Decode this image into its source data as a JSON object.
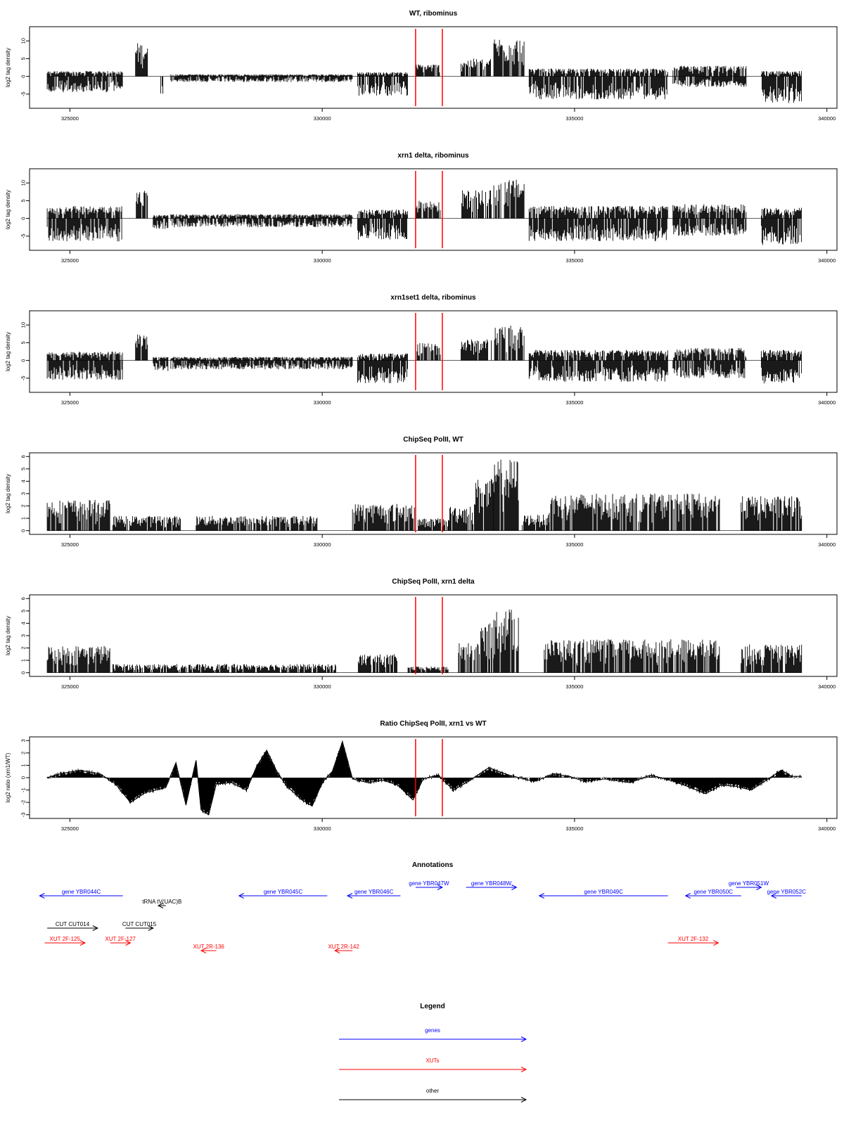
{
  "chart_data": [
    {
      "type": "bar",
      "title": "WT, ribominus",
      "ylabel": "log2 tag density",
      "xlim": [
        324200,
        340200
      ],
      "ylim": [
        -9,
        14
      ],
      "yticks": [
        -5,
        0,
        5,
        10
      ],
      "xticks": [
        325000,
        330000,
        335000,
        340000
      ],
      "red_lines": [
        331850,
        332380
      ],
      "series": [
        {
          "profile": [
            {
              "range": [
                324550,
                326050
              ],
              "pos": 1.5,
              "neg": -4.5
            },
            {
              "range": [
                326300,
                326550
              ],
              "pos": 9.5,
              "neg": 0
            },
            {
              "range": [
                326800,
                326850
              ],
              "pos": 0,
              "neg": -5
            },
            {
              "range": [
                327000,
                330600
              ],
              "pos": 0.6,
              "neg": -1.6
            },
            {
              "range": [
                330700,
                331700
              ],
              "pos": 1.2,
              "neg": -5.5
            },
            {
              "range": [
                331850,
                332350
              ],
              "pos": 3.5,
              "neg": 0
            },
            {
              "range": [
                332750,
                333350
              ],
              "pos": 5,
              "neg": 0
            },
            {
              "range": [
                333400,
                334000
              ],
              "pos": 11,
              "neg": 0
            },
            {
              "range": [
                334100,
                336850
              ],
              "pos": 2.2,
              "neg": -6.5
            },
            {
              "range": [
                336950,
                338400
              ],
              "pos": 3,
              "neg": -3
            },
            {
              "range": [
                338700,
                339500
              ],
              "pos": 1.5,
              "neg": -7.5
            }
          ]
        }
      ]
    },
    {
      "type": "bar",
      "title": "xrn1 delta, ribominus",
      "ylabel": "log2 tag density",
      "xlim": [
        324200,
        340200
      ],
      "ylim": [
        -9,
        14
      ],
      "yticks": [
        -5,
        0,
        5,
        10
      ],
      "xticks": [
        325000,
        330000,
        335000,
        340000
      ],
      "red_lines": [
        331850,
        332380
      ],
      "series": [
        {
          "profile": [
            {
              "range": [
                324550,
                326050
              ],
              "pos": 3.5,
              "neg": -6.5
            },
            {
              "range": [
                326300,
                326550
              ],
              "pos": 8,
              "neg": 0
            },
            {
              "range": [
                326650,
                326950
              ],
              "pos": 1,
              "neg": -3
            },
            {
              "range": [
                327000,
                330600
              ],
              "pos": 1.2,
              "neg": -2.5
            },
            {
              "range": [
                330700,
                331700
              ],
              "pos": 2.5,
              "neg": -6
            },
            {
              "range": [
                331850,
                332350
              ],
              "pos": 5,
              "neg": 0
            },
            {
              "range": [
                332750,
                333350
              ],
              "pos": 8,
              "neg": 0
            },
            {
              "range": [
                333400,
                334000
              ],
              "pos": 11,
              "neg": 0
            },
            {
              "range": [
                334100,
                336850
              ],
              "pos": 3.5,
              "neg": -6.5
            },
            {
              "range": [
                336950,
                338400
              ],
              "pos": 4,
              "neg": -5
            },
            {
              "range": [
                338700,
                339500
              ],
              "pos": 3,
              "neg": -7.5
            }
          ]
        }
      ]
    },
    {
      "type": "bar",
      "title": "xrn1set1 delta, ribominus",
      "ylabel": "log2 tag density",
      "xlim": [
        324200,
        340200
      ],
      "ylim": [
        -9,
        14
      ],
      "yticks": [
        -5,
        0,
        5,
        10
      ],
      "xticks": [
        325000,
        330000,
        335000,
        340000
      ],
      "red_lines": [
        331850,
        332380
      ],
      "series": [
        {
          "profile": [
            {
              "range": [
                324550,
                326050
              ],
              "pos": 2.5,
              "neg": -5.5
            },
            {
              "range": [
                326300,
                326550
              ],
              "pos": 8,
              "neg": 0
            },
            {
              "range": [
                326650,
                326950
              ],
              "pos": 1,
              "neg": -3
            },
            {
              "range": [
                327000,
                330600
              ],
              "pos": 1,
              "neg": -2.5
            },
            {
              "range": [
                330700,
                331700
              ],
              "pos": 2,
              "neg": -6.5
            },
            {
              "range": [
                331850,
                332350
              ],
              "pos": 5,
              "neg": 0
            },
            {
              "range": [
                332750,
                333350
              ],
              "pos": 6,
              "neg": 0
            },
            {
              "range": [
                333400,
                334000
              ],
              "pos": 10,
              "neg": 0
            },
            {
              "range": [
                334100,
                336850
              ],
              "pos": 3,
              "neg": -6
            },
            {
              "range": [
                336950,
                338400
              ],
              "pos": 3.5,
              "neg": -5
            },
            {
              "range": [
                338700,
                339500
              ],
              "pos": 3,
              "neg": -6.5
            }
          ]
        }
      ]
    },
    {
      "type": "bar",
      "title": "ChipSeq PolII, WT",
      "ylabel": "log2 tag density",
      "xlim": [
        324200,
        340200
      ],
      "ylim": [
        -0.3,
        6.3
      ],
      "yticks": [
        0,
        1,
        2,
        3,
        4,
        5,
        6
      ],
      "xticks": [
        325000,
        330000,
        335000,
        340000
      ],
      "red_lines": [
        331850,
        332380
      ],
      "series": [
        {
          "profile": [
            {
              "range": [
                324550,
                325800
              ],
              "pos": 2.5,
              "neg": 0
            },
            {
              "range": [
                325850,
                327200
              ],
              "pos": 1.2,
              "neg": 0
            },
            {
              "range": [
                327500,
                329900
              ],
              "pos": 1.2,
              "neg": 0
            },
            {
              "range": [
                330600,
                331850
              ],
              "pos": 2.2,
              "neg": 0
            },
            {
              "range": [
                331900,
                332500
              ],
              "pos": 1,
              "neg": 0
            },
            {
              "range": [
                332500,
                333000
              ],
              "pos": 2,
              "neg": 0
            },
            {
              "range": [
                333000,
                333400
              ],
              "pos": 4.2,
              "neg": 0
            },
            {
              "range": [
                333400,
                333900
              ],
              "pos": 5.8,
              "neg": 0
            },
            {
              "range": [
                333950,
                334500
              ],
              "pos": 1.3,
              "neg": 0
            },
            {
              "range": [
                334500,
                337900
              ],
              "pos": 3,
              "neg": 0
            },
            {
              "range": [
                338300,
                339500
              ],
              "pos": 2.8,
              "neg": 0
            }
          ]
        }
      ]
    },
    {
      "type": "bar",
      "title": "ChipSeq PolII, xrn1 delta",
      "ylabel": "log2 tag density",
      "xlim": [
        324200,
        340200
      ],
      "ylim": [
        -0.3,
        6.3
      ],
      "yticks": [
        0,
        1,
        2,
        3,
        4,
        5,
        6
      ],
      "xticks": [
        325000,
        330000,
        335000,
        340000
      ],
      "red_lines": [
        331850,
        332380
      ],
      "series": [
        {
          "profile": [
            {
              "range": [
                324550,
                325800
              ],
              "pos": 2.2,
              "neg": 0
            },
            {
              "range": [
                325850,
                330300
              ],
              "pos": 0.7,
              "neg": 0
            },
            {
              "range": [
                330700,
                331500
              ],
              "pos": 1.5,
              "neg": 0
            },
            {
              "range": [
                331700,
                332500
              ],
              "pos": 0.5,
              "neg": 0
            },
            {
              "range": [
                332700,
                333100
              ],
              "pos": 2.5,
              "neg": 0
            },
            {
              "range": [
                333100,
                333400
              ],
              "pos": 4,
              "neg": 0
            },
            {
              "range": [
                333400,
                333900
              ],
              "pos": 5.2,
              "neg": 0
            },
            {
              "range": [
                334400,
                337900
              ],
              "pos": 2.7,
              "neg": 0
            },
            {
              "range": [
                338300,
                339500
              ],
              "pos": 2.3,
              "neg": 0
            }
          ]
        }
      ]
    },
    {
      "type": "area",
      "title": "Ratio ChipSeq PolII, xrn1 vs WT",
      "ylabel": "log2 ratio (xrn1/WT)",
      "xlim": [
        324200,
        340200
      ],
      "ylim": [
        -3.3,
        3.3
      ],
      "yticks": [
        -3,
        -2,
        -1,
        0,
        1,
        2,
        3
      ],
      "xticks": [
        325000,
        330000,
        335000,
        340000
      ],
      "red_lines": [
        331850,
        332380
      ],
      "series": [
        {
          "points": [
            [
              324550,
              0
            ],
            [
              324800,
              0.3
            ],
            [
              325200,
              0.6
            ],
            [
              325600,
              0.3
            ],
            [
              325900,
              -0.5
            ],
            [
              326200,
              -2.0
            ],
            [
              326500,
              -1.2
            ],
            [
              326900,
              -0.8
            ],
            [
              327100,
              1.2
            ],
            [
              327300,
              -2.2
            ],
            [
              327500,
              1.4
            ],
            [
              327600,
              -2.6
            ],
            [
              327750,
              -3.0
            ],
            [
              327900,
              -0.5
            ],
            [
              328200,
              -0.4
            ],
            [
              328500,
              -1.0
            ],
            [
              328700,
              0.9
            ],
            [
              328900,
              2.2
            ],
            [
              329100,
              0.5
            ],
            [
              329300,
              -0.7
            ],
            [
              329600,
              -1.8
            ],
            [
              329800,
              -2.3
            ],
            [
              330000,
              -0.4
            ],
            [
              330200,
              0.5
            ],
            [
              330400,
              2.9
            ],
            [
              330600,
              -0.1
            ],
            [
              330900,
              -0.4
            ],
            [
              331200,
              -0.2
            ],
            [
              331500,
              -0.6
            ],
            [
              331800,
              -1.8
            ],
            [
              332000,
              -0.1
            ],
            [
              332300,
              0.2
            ],
            [
              332600,
              -1.0
            ],
            [
              332900,
              -0.3
            ],
            [
              333300,
              0.8
            ],
            [
              333700,
              0.2
            ],
            [
              334200,
              -0.3
            ],
            [
              334600,
              0.3
            ],
            [
              334900,
              0.1
            ],
            [
              335200,
              -0.3
            ],
            [
              335600,
              -0.1
            ],
            [
              336100,
              -0.4
            ],
            [
              336500,
              0.2
            ],
            [
              336900,
              -0.2
            ],
            [
              337300,
              -0.8
            ],
            [
              337600,
              -1.3
            ],
            [
              337900,
              -0.6
            ],
            [
              338200,
              -0.7
            ],
            [
              338500,
              -1.0
            ],
            [
              338800,
              -0.2
            ],
            [
              339100,
              0.6
            ],
            [
              339300,
              0.1
            ],
            [
              339500,
              0.1
            ]
          ]
        }
      ]
    }
  ],
  "annotations": {
    "title": "Annotations",
    "features": [
      {
        "label": "gene YBR044C",
        "color": "#0000ff",
        "from": 326050,
        "to": 324400,
        "row": 2
      },
      {
        "label": "tRNA tV(UAC)B",
        "color": "#000000",
        "from": 326900,
        "to": 326750,
        "row": 3
      },
      {
        "label": "gene YBR045C",
        "color": "#0000ff",
        "from": 330100,
        "to": 328350,
        "row": 2
      },
      {
        "label": "gene YBR046C",
        "color": "#0000ff",
        "from": 331550,
        "to": 330500,
        "row": 2
      },
      {
        "label": "gene YBR047W",
        "color": "#0000ff",
        "from": 331850,
        "to": 332380,
        "row": 1
      },
      {
        "label": "gene YBR048W",
        "color": "#0000ff",
        "from": 332850,
        "to": 333850,
        "row": 1
      },
      {
        "label": "gene YBR049C",
        "color": "#0000ff",
        "from": 336850,
        "to": 334300,
        "row": 2
      },
      {
        "label": "gene YBR050C",
        "color": "#0000ff",
        "from": 338300,
        "to": 337200,
        "row": 2
      },
      {
        "label": "gene YBR051W",
        "color": "#0000ff",
        "from": 338200,
        "to": 338700,
        "row": 1
      },
      {
        "label": "gene YBR052C",
        "color": "#0000ff",
        "from": 339500,
        "to": 338900,
        "row": 2
      },
      {
        "label": "CUT CUT014",
        "color": "#000000",
        "from": 324550,
        "to": 325550,
        "row": 4
      },
      {
        "label": "CUT CUT015",
        "color": "#000000",
        "from": 326100,
        "to": 326650,
        "row": 4
      },
      {
        "label": "XUT 2F-125",
        "color": "#ff0000",
        "from": 324500,
        "to": 325300,
        "row": 5
      },
      {
        "label": "XUT 2F-127",
        "color": "#ff0000",
        "from": 325800,
        "to": 326200,
        "row": 5
      },
      {
        "label": "XUT 2R-136",
        "color": "#ff0000",
        "from": 327900,
        "to": 327600,
        "row": 6
      },
      {
        "label": "XUT 2R-142",
        "color": "#ff0000",
        "from": 330600,
        "to": 330250,
        "row": 6
      },
      {
        "label": "XUT 2F-132",
        "color": "#ff0000",
        "from": 336850,
        "to": 337850,
        "row": 5
      }
    ]
  },
  "legend": {
    "title": "Legend",
    "items": [
      {
        "label": "genes",
        "color": "#0000ff"
      },
      {
        "label": "XUTs",
        "color": "#ff0000"
      },
      {
        "label": "other",
        "color": "#000000"
      }
    ]
  }
}
